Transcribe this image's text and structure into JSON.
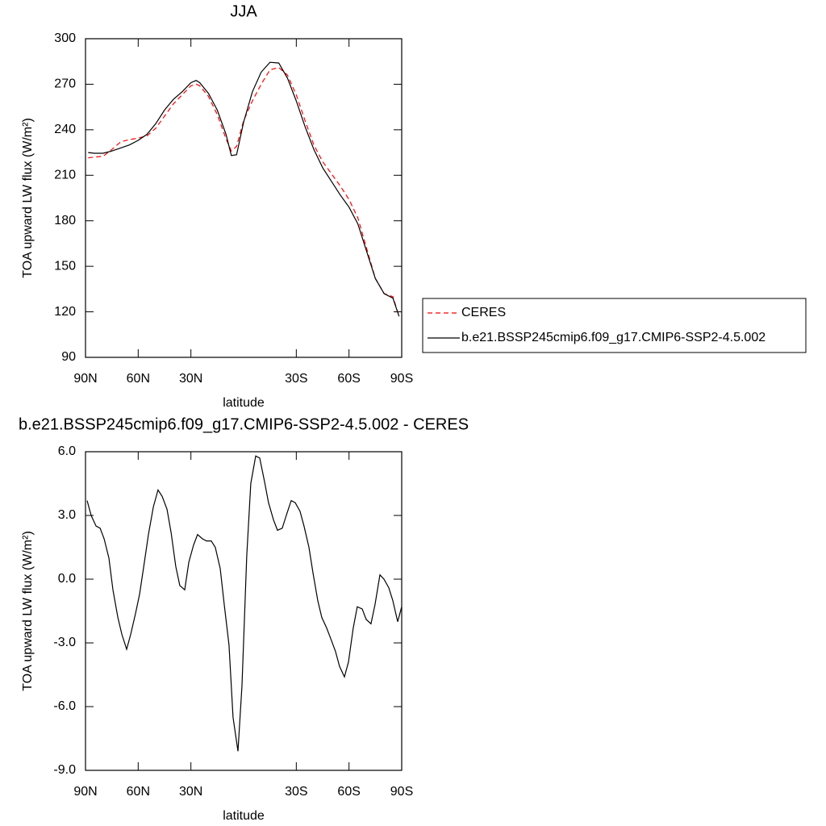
{
  "chart_data": [
    {
      "type": "line",
      "title": "JJA",
      "xlabel": "latitude",
      "ylabel": "TOA upward LW flux (W/m²)",
      "x": [
        88.5,
        85,
        80,
        75,
        70,
        65,
        60,
        55,
        50,
        45,
        40,
        35,
        30,
        27,
        25,
        20,
        15,
        10,
        7,
        4,
        0,
        -5,
        -10,
        -15,
        -20,
        -25,
        -30,
        -35,
        -40,
        -45,
        -50,
        -55,
        -60,
        -65,
        -70,
        -75,
        -80,
        -85,
        -88.5
      ],
      "series": [
        {
          "name": "CERES",
          "color": "#ff0000",
          "dashed": true,
          "values": [
            221.5,
            222,
            222.5,
            227,
            232,
            233.5,
            234.5,
            236,
            241,
            249,
            257,
            263,
            269,
            270,
            269,
            262,
            250,
            234,
            226,
            229,
            246,
            259,
            270,
            279.5,
            281,
            276,
            263,
            246,
            230,
            219,
            211,
            203,
            194,
            182,
            162,
            142,
            132,
            130,
            117
          ]
        },
        {
          "name": "b.e21.BSSP245cmip6.f09_g17.CMIP6-SSP2-4.5.002",
          "color": "#000000",
          "dashed": false,
          "values": [
            225,
            224.5,
            224.5,
            226,
            228,
            230,
            233,
            237,
            244,
            253,
            260,
            265,
            271,
            272.5,
            271,
            264,
            253,
            237,
            223,
            223.5,
            245,
            265,
            278,
            284.5,
            284,
            274,
            259,
            242,
            227,
            215,
            206,
            197,
            189,
            178,
            160,
            142,
            132,
            129,
            117
          ]
        }
      ],
      "xlim": [
        90,
        -90
      ],
      "xticks": [
        {
          "value": 90,
          "label": "90N"
        },
        {
          "value": 60,
          "label": "60N"
        },
        {
          "value": 30,
          "label": "30N"
        },
        {
          "value": -30,
          "label": "30S"
        },
        {
          "value": -60,
          "label": "60S"
        },
        {
          "value": -90,
          "label": "90S"
        }
      ],
      "ylim": [
        90,
        300
      ],
      "yticks": [
        90,
        120,
        150,
        180,
        210,
        240,
        270,
        300
      ],
      "legend": "right"
    },
    {
      "type": "line",
      "title": "b.e21.BSSP245cmip6.f09_g17.CMIP6-SSP2-4.5.002 - CERES",
      "xlabel": "latitude",
      "ylabel": "TOA upward LW flux (W/m²)",
      "x": [
        89.1,
        86.8,
        84,
        81.7,
        79.4,
        76.7,
        74.4,
        71.6,
        69.3,
        66.6,
        64.3,
        61.5,
        59.2,
        56.5,
        54.2,
        51.4,
        48.7,
        46.4,
        43.6,
        41.3,
        38.6,
        36.3,
        33.5,
        31.2,
        28.5,
        26.2,
        23.4,
        21.1,
        18.4,
        16.1,
        13.3,
        11,
        8.3,
        6,
        3.2,
        0.9,
        -1.8,
        -4.1,
        -6.9,
        -9.2,
        -11.9,
        -14.2,
        -17,
        -19.3,
        -22,
        -24.3,
        -27.1,
        -29.4,
        -32.1,
        -34.4,
        -37.2,
        -39.5,
        -42.2,
        -44.5,
        -47.3,
        -49.6,
        -52.3,
        -54.6,
        -57.4,
        -59.7,
        -62.4,
        -64.7,
        -67.5,
        -69.8,
        -72.5,
        -74.8,
        -77.6,
        -79.9,
        -82.6,
        -84.9,
        -87.7,
        -90
      ],
      "series": [
        {
          "color": "#000000",
          "dashed": false,
          "values": [
            3.7,
            3.0,
            2.5,
            2.4,
            1.9,
            1.0,
            -0.5,
            -1.8,
            -2.6,
            -3.3,
            -2.6,
            -1.6,
            -0.7,
            0.8,
            2.1,
            3.4,
            4.2,
            3.9,
            3.3,
            2.2,
            0.6,
            -0.3,
            -0.5,
            0.8,
            1.6,
            2.1,
            1.9,
            1.8,
            1.8,
            1.5,
            0.5,
            -1.2,
            -3.1,
            -6.5,
            -8.1,
            -5.0,
            1.1,
            4.5,
            5.8,
            5.7,
            4.6,
            3.6,
            2.8,
            2.3,
            2.4,
            3.0,
            3.7,
            3.6,
            3.2,
            2.5,
            1.5,
            0.3,
            -1.0,
            -1.8,
            -2.3,
            -2.8,
            -3.4,
            -4.1,
            -4.6,
            -3.9,
            -2.3,
            -1.3,
            -1.4,
            -1.9,
            -2.1,
            -1.2,
            0.2,
            0.0,
            -0.4,
            -1.0,
            -2.0,
            -1.3
          ]
        }
      ],
      "xlim": [
        90,
        -90
      ],
      "xticks": [
        {
          "value": 90,
          "label": "90N"
        },
        {
          "value": 60,
          "label": "60N"
        },
        {
          "value": 30,
          "label": "30N"
        },
        {
          "value": -30,
          "label": "30S"
        },
        {
          "value": -60,
          "label": "60S"
        },
        {
          "value": -90,
          "label": "90S"
        }
      ],
      "ylim": [
        -9,
        6
      ],
      "yticks": [
        {
          "value": -9,
          "label": "-9.0"
        },
        {
          "value": -6,
          "label": "-6.0"
        },
        {
          "value": -3,
          "label": "-3.0"
        },
        {
          "value": 0,
          "label": "0.0"
        },
        {
          "value": 3,
          "label": "3.0"
        },
        {
          "value": 6,
          "label": "6.0"
        }
      ]
    }
  ]
}
